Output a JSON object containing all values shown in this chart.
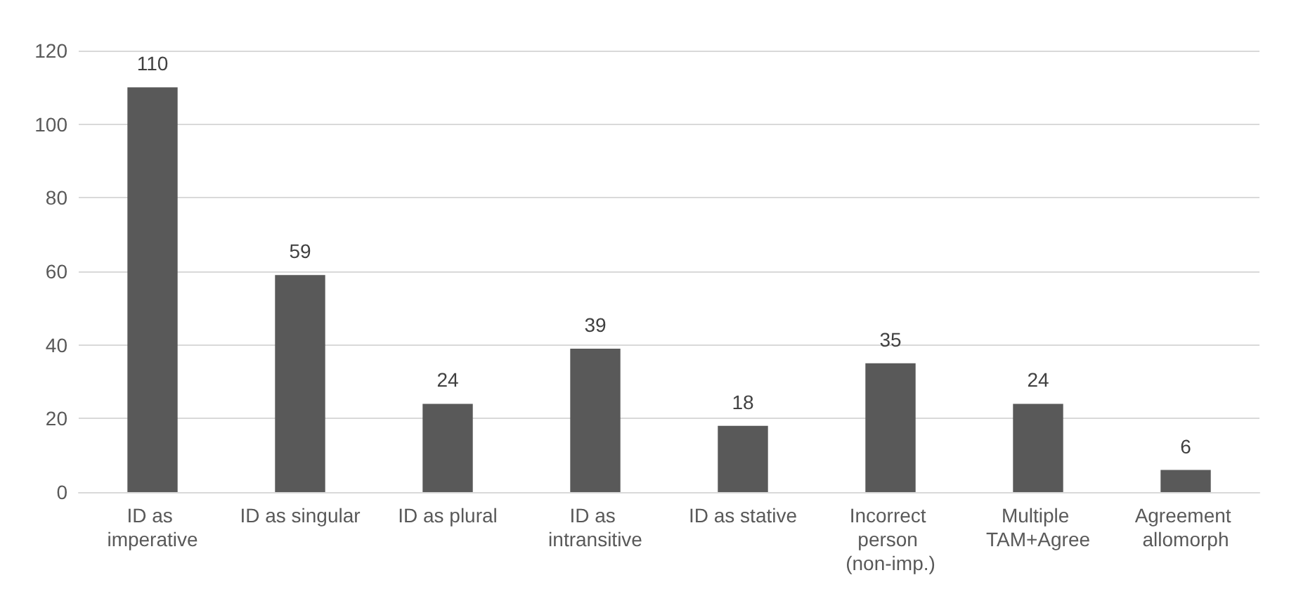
{
  "chart_data": {
    "type": "bar",
    "categories": [
      "ID as imperative",
      "ID as singular",
      "ID as plural",
      "ID as intransitive",
      "ID as stative",
      "Incorrect person (non-imp.)",
      "Multiple TAM+Agree",
      "Agreement allomorph"
    ],
    "values": [
      110,
      59,
      24,
      39,
      18,
      35,
      24,
      6
    ],
    "color": "#595959",
    "ylim": [
      0,
      120
    ],
    "yticks": [
      0,
      20,
      40,
      60,
      80,
      100,
      120
    ],
    "grid": "y",
    "data_labels": true
  }
}
